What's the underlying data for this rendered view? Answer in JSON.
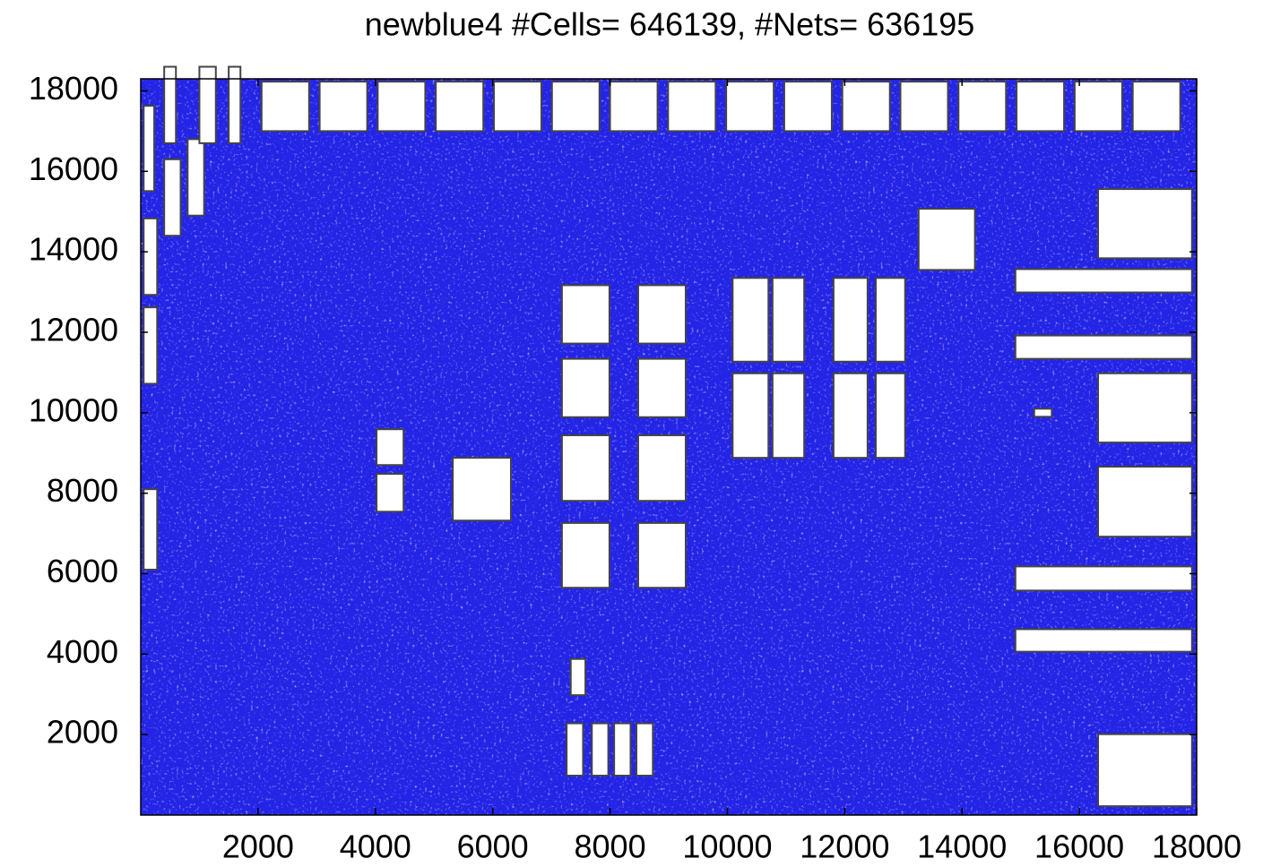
{
  "chart_data": {
    "type": "placement",
    "title": "newblue4 #Cells= 646139, #Nets= 636195",
    "xlim": [
      0,
      18000
    ],
    "ylim": [
      0,
      18300
    ],
    "xticks": [
      2000,
      4000,
      6000,
      8000,
      10000,
      12000,
      14000,
      16000,
      18000
    ],
    "yticks": [
      2000,
      4000,
      6000,
      8000,
      10000,
      12000,
      14000,
      16000,
      18000
    ],
    "cell_color": "#2424e6",
    "macro_color": "#ffffff",
    "macros": [
      [
        2060,
        17000,
        810,
        1230
      ],
      [
        3050,
        17000,
        810,
        1230
      ],
      [
        4040,
        17000,
        810,
        1230
      ],
      [
        5030,
        17000,
        810,
        1230
      ],
      [
        6020,
        17000,
        810,
        1230
      ],
      [
        7010,
        17000,
        810,
        1230
      ],
      [
        8000,
        17000,
        810,
        1230
      ],
      [
        8990,
        17000,
        810,
        1230
      ],
      [
        9980,
        17000,
        810,
        1230
      ],
      [
        10970,
        17000,
        810,
        1230
      ],
      [
        11960,
        17000,
        810,
        1230
      ],
      [
        12950,
        17000,
        810,
        1230
      ],
      [
        13940,
        17000,
        810,
        1230
      ],
      [
        14930,
        17000,
        810,
        1230
      ],
      [
        15920,
        17000,
        810,
        1230
      ],
      [
        16910,
        17000,
        810,
        1230
      ],
      [
        7180,
        11720,
        810,
        1450
      ],
      [
        8480,
        11720,
        810,
        1450
      ],
      [
        7180,
        9890,
        810,
        1450
      ],
      [
        8480,
        9890,
        810,
        1450
      ],
      [
        7180,
        7810,
        810,
        1630
      ],
      [
        8480,
        7810,
        810,
        1630
      ],
      [
        7180,
        5650,
        810,
        1610
      ],
      [
        8480,
        5650,
        810,
        1610
      ],
      [
        10090,
        11270,
        610,
        2080
      ],
      [
        10770,
        11270,
        540,
        2080
      ],
      [
        11810,
        11270,
        580,
        2080
      ],
      [
        12530,
        11270,
        500,
        2080
      ],
      [
        10090,
        8880,
        610,
        2100
      ],
      [
        10770,
        8880,
        540,
        2100
      ],
      [
        11810,
        8880,
        580,
        2100
      ],
      [
        12530,
        8880,
        500,
        2100
      ],
      [
        16320,
        13840,
        1600,
        1720
      ],
      [
        16320,
        9260,
        1600,
        1720
      ],
      [
        16320,
        6920,
        1600,
        1740
      ],
      [
        16320,
        220,
        1600,
        1790
      ],
      [
        14910,
        12990,
        3010,
        580
      ],
      [
        14910,
        11340,
        3010,
        580
      ],
      [
        14910,
        5580,
        3010,
        600
      ],
      [
        14910,
        4060,
        3010,
        560
      ],
      [
        13260,
        13550,
        960,
        1520
      ],
      [
        5320,
        7320,
        990,
        1560
      ],
      [
        4020,
        8700,
        460,
        890
      ],
      [
        4020,
        7540,
        460,
        940
      ],
      [
        7260,
        980,
        280,
        1300
      ],
      [
        7690,
        980,
        280,
        1300
      ],
      [
        8070,
        980,
        280,
        1300
      ],
      [
        8450,
        980,
        280,
        1300
      ],
      [
        50,
        15510,
        180,
        2120
      ],
      [
        400,
        14400,
        280,
        1900
      ],
      [
        800,
        14900,
        280,
        1900
      ],
      [
        1000,
        16700,
        280,
        1900
      ],
      [
        400,
        16700,
        200,
        1900
      ],
      [
        1500,
        16700,
        200,
        1900
      ],
      [
        50,
        12930,
        230,
        1900
      ],
      [
        50,
        10720,
        230,
        1900
      ],
      [
        50,
        6100,
        230,
        2000
      ],
      [
        7330,
        2980,
        250,
        900
      ],
      [
        15230,
        9900,
        300,
        200
      ]
    ]
  }
}
